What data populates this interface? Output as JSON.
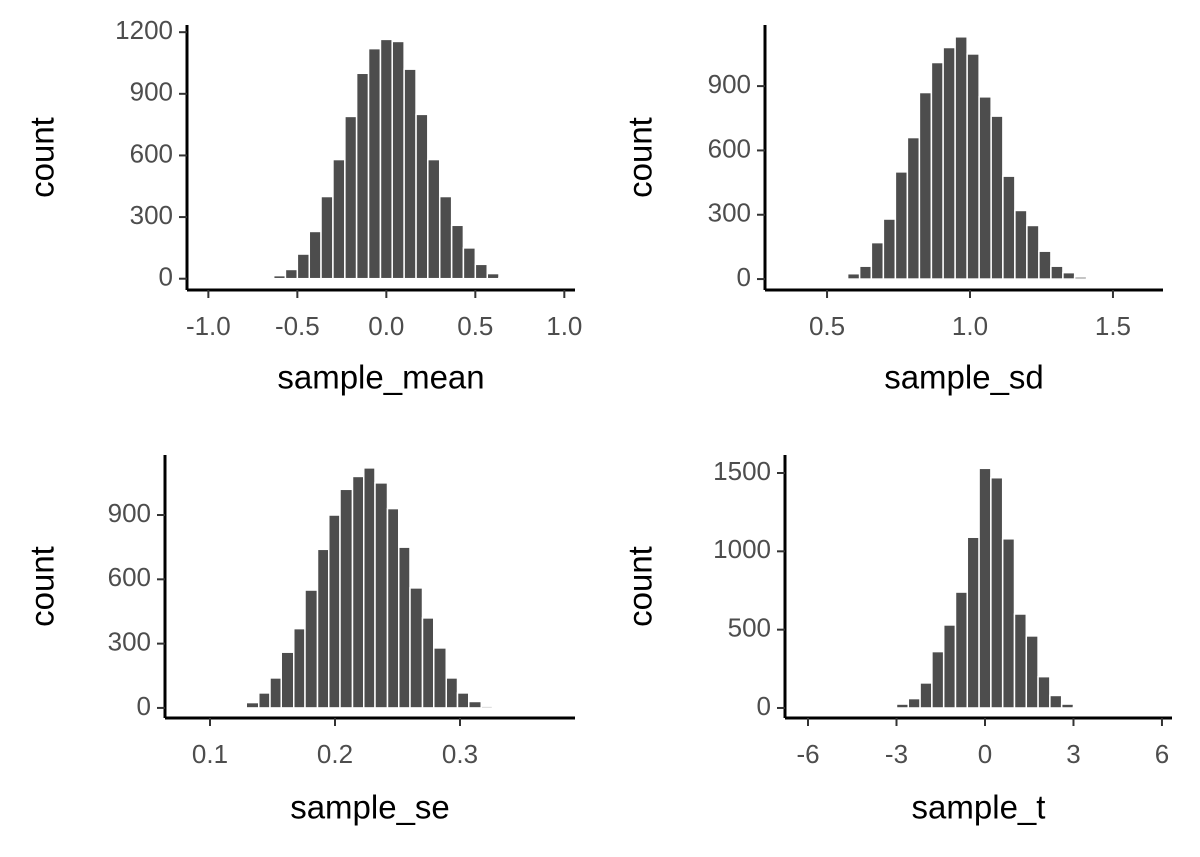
{
  "chart_data": [
    {
      "type": "histogram",
      "x_label": "sample_mean",
      "y_label": "count",
      "color": "#4d4d4d",
      "bins": [
        -0.7,
        -0.633,
        -0.567,
        -0.5,
        -0.433,
        -0.367,
        -0.3,
        -0.233,
        -0.167,
        -0.1,
        -0.033,
        0.033,
        0.1,
        0.167,
        0.233,
        0.3,
        0.367,
        0.433,
        0.5,
        0.567,
        0.633,
        0.7
      ],
      "values": [
        3,
        15,
        45,
        120,
        230,
        400,
        580,
        790,
        1000,
        1120,
        1165,
        1155,
        1020,
        800,
        580,
        400,
        260,
        150,
        70,
        25,
        5
      ],
      "xlim": [
        -1.12,
        1.06
      ],
      "ylim": [
        -55,
        1235
      ],
      "xticks": [
        {
          "value": -1,
          "label": "-1.0"
        },
        -0.5,
        {
          "value": 0,
          "label": "0.0"
        },
        0.5,
        {
          "value": 1,
          "label": "1.0"
        }
      ],
      "yticks": [
        0,
        300,
        600,
        900,
        1200
      ]
    },
    {
      "type": "histogram",
      "x_label": "sample_sd",
      "y_label": "count",
      "color": "#4d4d4d",
      "bins": [
        0.53,
        0.572,
        0.614,
        0.655,
        0.697,
        0.739,
        0.781,
        0.823,
        0.865,
        0.906,
        0.948,
        0.99,
        1.032,
        1.074,
        1.115,
        1.157,
        1.199,
        1.241,
        1.283,
        1.325,
        1.366,
        1.408,
        1.45
      ],
      "values": [
        3,
        25,
        60,
        170,
        280,
        500,
        660,
        870,
        1010,
        1080,
        1130,
        1050,
        850,
        760,
        480,
        320,
        250,
        130,
        60,
        30,
        10,
        3
      ],
      "xlim": [
        0.283,
        1.675
      ],
      "ylim": [
        -51,
        1185
      ],
      "xticks": [
        0.5,
        {
          "value": 1,
          "label": "1.0"
        },
        1.5
      ],
      "yticks": [
        0,
        300,
        600,
        900
      ]
    },
    {
      "type": "histogram",
      "x_label": "sample_se",
      "y_label": "count",
      "color": "#4d4d4d",
      "bins": [
        0.12,
        0.129,
        0.139,
        0.148,
        0.157,
        0.167,
        0.176,
        0.186,
        0.195,
        0.204,
        0.214,
        0.223,
        0.232,
        0.242,
        0.251,
        0.26,
        0.27,
        0.279,
        0.289,
        0.298,
        0.307,
        0.317,
        0.326
      ],
      "values": [
        5,
        25,
        70,
        140,
        260,
        370,
        550,
        740,
        900,
        1020,
        1080,
        1120,
        1050,
        930,
        750,
        560,
        420,
        280,
        140,
        70,
        30,
        8
      ],
      "xlim": [
        0.064,
        0.392
      ],
      "ylim": [
        -47,
        1180
      ],
      "xticks": [
        0.1,
        0.2,
        0.3
      ],
      "yticks": [
        0,
        300,
        600,
        900
      ]
    },
    {
      "type": "histogram",
      "x_label": "sample_t",
      "y_label": "count",
      "color": "#4d4d4d",
      "bins": [
        -3.4,
        -3.0,
        -2.6,
        -2.2,
        -1.8,
        -1.4,
        -1.0,
        -0.6,
        -0.2,
        0.2,
        0.6,
        1.0,
        1.4,
        1.8,
        2.2,
        2.6,
        3.0,
        3.4
      ],
      "values": [
        5,
        25,
        60,
        160,
        360,
        530,
        740,
        1090,
        1530,
        1470,
        1080,
        600,
        460,
        200,
        80,
        25,
        5
      ],
      "xlim": [
        -6.78,
        6.34
      ],
      "ylim": [
        -64,
        1615
      ],
      "xticks": [
        -6,
        -3,
        0,
        3,
        6
      ],
      "yticks": [
        0,
        500,
        1000,
        1500
      ]
    }
  ]
}
